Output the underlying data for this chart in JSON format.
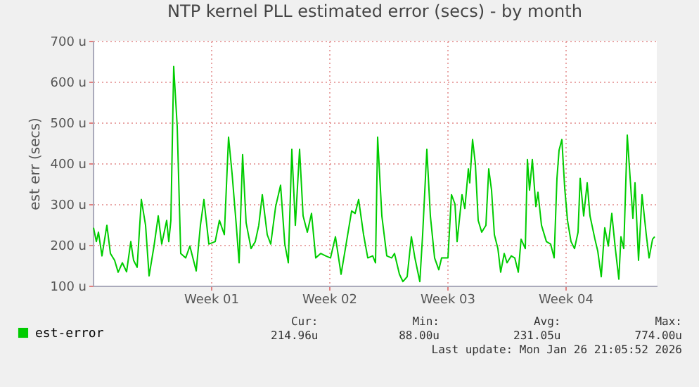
{
  "chart_data": {
    "type": "line",
    "title": "NTP kernel PLL estimated error (secs) - by month",
    "ylabel": "est err (secs)",
    "x": [
      "2025-12-22T01:00",
      "2025-12-22T05:00",
      "2025-12-22T08:00",
      "2025-12-22T13:00",
      "2025-12-22T20:00",
      "2025-12-23T01:00",
      "2025-12-23T07:00",
      "2025-12-23T12:00",
      "2025-12-23T18:00",
      "2025-12-24T00:00",
      "2025-12-24T06:00",
      "2025-12-24T10:00",
      "2025-12-24T15:00",
      "2025-12-24T21:00",
      "2025-12-25T03:00",
      "2025-12-25T08:00",
      "2025-12-25T15:00",
      "2025-12-25T21:00",
      "2025-12-26T02:00",
      "2025-12-26T09:00",
      "2025-12-26T12:00",
      "2025-12-26T15:00",
      "2025-12-26T19:00",
      "2025-12-27T00:00",
      "2025-12-27T05:00",
      "2025-12-27T12:00",
      "2025-12-27T18:00",
      "2025-12-28T03:00",
      "2025-12-28T09:00",
      "2025-12-28T14:00",
      "2025-12-28T21:00",
      "2025-12-29T06:00",
      "2025-12-29T12:00",
      "2025-12-29T19:00",
      "2025-12-30T01:00",
      "2025-12-30T06:00",
      "2025-12-30T12:00",
      "2025-12-30T16:00",
      "2025-12-30T21:00",
      "2025-12-31T02:00",
      "2025-12-31T09:00",
      "2025-12-31T15:00",
      "2025-12-31T20:00",
      "2026-01-01T01:00",
      "2026-01-01T08:00",
      "2026-01-01T13:00",
      "2026-01-01T20:00",
      "2026-01-02T03:00",
      "2026-01-02T09:00",
      "2026-01-02T14:00",
      "2026-01-02T19:00",
      "2026-01-03T00:00",
      "2026-01-03T06:00",
      "2026-01-03T11:00",
      "2026-01-03T17:00",
      "2026-01-03T23:00",
      "2026-01-04T05:00",
      "2026-01-04T12:00",
      "2026-01-04T19:00",
      "2026-01-05T02:00",
      "2026-01-05T09:00",
      "2026-01-05T17:00",
      "2026-01-05T22:00",
      "2026-01-06T08:00",
      "2026-01-06T13:00",
      "2026-01-06T18:00",
      "2026-01-07T01:00",
      "2026-01-07T07:00",
      "2026-01-07T14:00",
      "2026-01-07T18:00",
      "2026-01-07T21:00",
      "2026-01-08T03:00",
      "2026-01-08T10:00",
      "2026-01-08T17:00",
      "2026-01-08T21:00",
      "2026-01-09T04:00",
      "2026-01-09T09:00",
      "2026-01-09T15:00",
      "2026-01-09T21:00",
      "2026-01-10T02:00",
      "2026-01-10T09:00",
      "2026-01-10T13:00",
      "2026-01-10T19:00",
      "2026-01-11T00:00",
      "2026-01-11T06:00",
      "2026-01-11T12:00",
      "2026-01-11T16:00",
      "2026-01-12T01:00",
      "2026-01-12T06:00",
      "2026-01-12T11:00",
      "2026-01-12T14:00",
      "2026-01-12T21:00",
      "2026-01-13T01:00",
      "2026-01-13T06:00",
      "2026-01-13T08:00",
      "2026-01-13T12:00",
      "2026-01-13T16:00",
      "2026-01-13T20:00",
      "2026-01-14T01:00",
      "2026-01-14T07:00",
      "2026-01-14T11:00",
      "2026-01-14T15:00",
      "2026-01-14T19:00",
      "2026-01-15T00:00",
      "2026-01-15T04:00",
      "2026-01-15T09:00",
      "2026-01-15T13:00",
      "2026-01-15T19:00",
      "2026-01-16T00:00",
      "2026-01-16T05:00",
      "2026-01-16T09:00",
      "2026-01-16T15:00",
      "2026-01-16T18:00",
      "2026-01-16T21:00",
      "2026-01-17T01:00",
      "2026-01-17T06:00",
      "2026-01-17T09:00",
      "2026-01-17T14:00",
      "2026-01-17T21:00",
      "2026-01-18T03:00",
      "2026-01-18T08:00",
      "2026-01-18T12:00",
      "2026-01-18T15:00",
      "2026-01-18T19:00",
      "2026-01-18T23:00",
      "2026-01-19T03:00",
      "2026-01-19T08:00",
      "2026-01-19T13:00",
      "2026-01-19T18:00",
      "2026-01-19T21:00",
      "2026-01-20T02:00",
      "2026-01-20T07:00",
      "2026-01-20T11:00",
      "2026-01-20T18:00",
      "2026-01-20T22:00",
      "2026-01-21T03:00",
      "2026-01-21T08:00",
      "2026-01-21T13:00",
      "2026-01-21T18:00",
      "2026-01-21T23:00",
      "2026-01-22T04:00",
      "2026-01-22T07:00",
      "2026-01-22T11:00",
      "2026-01-22T16:00",
      "2026-01-22T21:00",
      "2026-01-23T00:00",
      "2026-01-23T03:00",
      "2026-01-23T08:00",
      "2026-01-23T13:00",
      "2026-01-23T19:00",
      "2026-01-23T23:00",
      "2026-01-24T04:00",
      "2026-01-24T07:00"
    ],
    "series": [
      {
        "name": "est-error",
        "color": "#00cc00",
        "values": [
          242,
          208,
          231,
          173,
          248,
          179,
          162,
          133,
          156,
          134,
          208,
          162,
          145,
          311,
          248,
          124,
          197,
          271,
          202,
          260,
          208,
          260,
          637,
          490,
          179,
          168,
          197,
          136,
          248,
          311,
          202,
          208,
          260,
          225,
          464,
          375,
          248,
          156,
          421,
          254,
          191,
          208,
          248,
          323,
          225,
          202,
          294,
          346,
          202,
          156,
          434,
          248,
          434,
          271,
          231,
          277,
          168,
          179,
          173,
          168,
          220,
          128,
          179,
          283,
          277,
          311,
          225,
          168,
          173,
          156,
          464,
          271,
          173,
          168,
          179,
          128,
          110,
          122,
          220,
          168,
          110,
          225,
          434,
          271,
          168,
          139,
          168,
          168,
          323,
          300,
          208,
          323,
          289,
          386,
          352,
          458,
          398,
          260,
          231,
          248,
          386,
          334,
          225,
          191,
          133,
          179,
          156,
          173,
          168,
          133,
          214,
          191,
          409,
          334,
          409,
          294,
          329,
          248,
          208,
          202,
          168,
          363,
          432,
          458,
          340,
          260,
          208,
          191,
          231,
          363,
          271,
          352,
          271,
          214,
          185,
          122,
          242,
          197,
          277,
          191,
          116,
          220,
          191,
          469,
          340,
          265,
          352,
          162,
          323,
          225,
          168,
          214,
          220
        ]
      }
    ],
    "xlim": [
      "2025-12-22T00:00",
      "2026-01-24T10:00"
    ],
    "xticks": [
      {
        "value": "2025-12-29",
        "label": "Week 01"
      },
      {
        "value": "2026-01-05",
        "label": "Week 02"
      },
      {
        "value": "2026-01-12",
        "label": "Week 03"
      },
      {
        "value": "2026-01-19",
        "label": "Week 04"
      }
    ],
    "ylim": [
      100,
      700
    ],
    "yticks": [
      {
        "value": 100,
        "label": "100 u"
      },
      {
        "value": 200,
        "label": "200 u"
      },
      {
        "value": 300,
        "label": "300 u"
      },
      {
        "value": 400,
        "label": "400 u"
      },
      {
        "value": 500,
        "label": "500 u"
      },
      {
        "value": 600,
        "label": "600 u"
      },
      {
        "value": 700,
        "label": "700 u"
      }
    ],
    "grid": true,
    "legend": "bottom left",
    "annotations": [
      "Cur:",
      "214.96u",
      "Min:",
      "88.00u",
      "Avg:",
      "231.05u",
      "Max:",
      "774.00u",
      "Last update: Mon Jan 26 21:05:52 2026"
    ]
  }
}
